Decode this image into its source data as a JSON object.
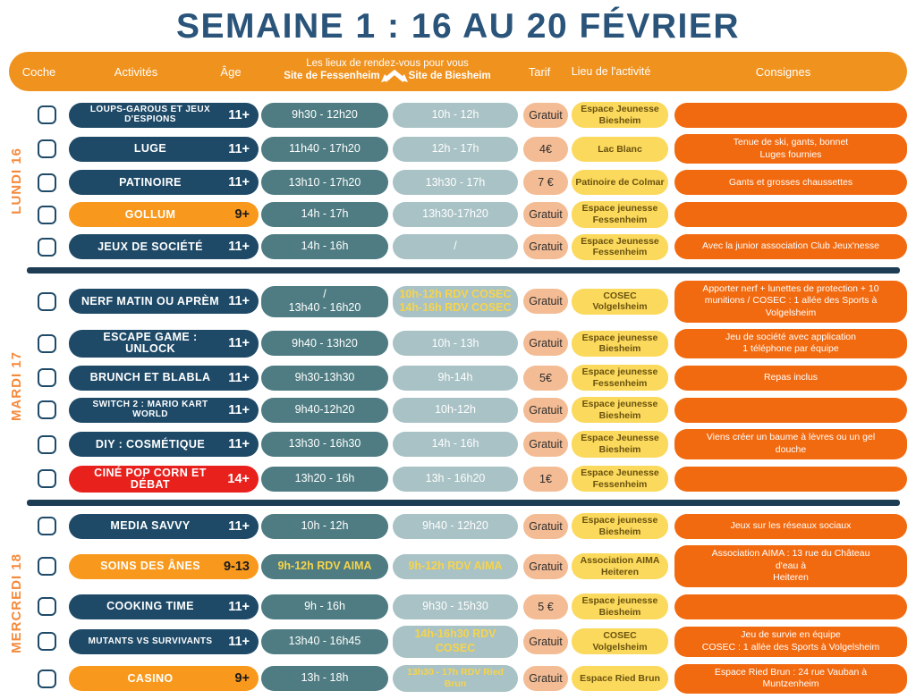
{
  "title": "SEMAINE 1 : 16 AU 20 FÉVRIER",
  "header": {
    "coche": "Coche",
    "activites": "Activités",
    "age": "Âge",
    "lieux_title": "Les lieux de rendez-vous pour vous",
    "site_left": "Site de Fessenheim",
    "site_right": "Site de Biesheim",
    "tarif": "Tarif",
    "lieu": "Lieu de l'activité",
    "consignes": "Consignes"
  },
  "colors": {
    "title_navy": "#2A547A",
    "header_orange": "#F0921E",
    "activity_navy": "#1E4A68",
    "activity_orange": "#F8991D",
    "activity_red": "#E8211D",
    "fessenheim_teal": "#4E7C82",
    "biesheim_bluegray": "#A9C2C5",
    "tarif_salmon": "#F4BC94",
    "lieu_yellow": "#FBD95C",
    "consigne_orange": "#F26A10",
    "rdv_yellow_text": "#F7D44A",
    "day_label_orange": "#F5893B",
    "separator_navy": "#1D3D55"
  },
  "days": [
    {
      "label": "LUNDI 16",
      "rows": [
        {
          "activity": "LOUPS-GAROUS ET JEUX D'ESPIONS",
          "small_name": true,
          "age": "11+",
          "pill": "navy",
          "fessenheim": "9h30 - 12h20",
          "biesheim": "10h - 12h",
          "tarif": "Gratuit",
          "lieu": "Espace Jeunesse\nBiesheim",
          "consigne": "",
          "icons": []
        },
        {
          "activity": "LUGE",
          "age": "11+",
          "pill": "navy",
          "fessenheim": "11h40 - 17h20",
          "biesheim": "12h - 17h",
          "tarif": "4€",
          "lieu": "Lac Blanc",
          "consigne": "Tenue de ski, gants, bonnet\nLuges fournies",
          "icons": [
            "sandwich"
          ]
        },
        {
          "activity": "PATINOIRE",
          "age": "11+",
          "pill": "navy",
          "fessenheim": "13h10 - 17h20",
          "biesheim": "13h30 - 17h",
          "tarif": "7 €",
          "lieu": "Patinoire de Colmar",
          "consigne": "Gants et grosses chaussettes",
          "icons": []
        },
        {
          "activity": "GOLLUM",
          "age": "9+",
          "pill": "orange",
          "fessenheim": "14h - 17h",
          "biesheim": "13h30-17h20",
          "tarif": "Gratuit",
          "lieu": "Espace jeunesse\nFessenheim",
          "consigne": "",
          "icons": []
        },
        {
          "activity": "JEUX DE SOCIÉTÉ",
          "age": "11+",
          "pill": "navy",
          "fessenheim": "14h - 16h",
          "biesheim": "/",
          "tarif": "Gratuit",
          "lieu": "Espace Jeunesse\nFessenheim",
          "consigne": "Avec la junior association Club Jeux'nesse",
          "icons": []
        }
      ]
    },
    {
      "label": "MARDI 17",
      "rows": [
        {
          "activity": "NERF MATIN OU APRÈM",
          "age": "11+",
          "pill": "navy",
          "fessenheim": "/\n13h40 - 16h20",
          "biesheim": "10h-12h RDV COSEC\n14h-16h RDV COSEC",
          "biesheim_yellow": true,
          "tarif": "Gratuit",
          "lieu": "COSEC Volgelsheim",
          "consigne": "Apporter nerf + lunettes de protection + 10\nmunitions / COSEC : 1 allée des Sports à Volgelsheim",
          "icons": []
        },
        {
          "activity": "ESCAPE GAME : UNLOCK",
          "age": "11+",
          "pill": "navy",
          "fessenheim": "9h40 - 13h20",
          "biesheim": "10h - 13h",
          "tarif": "Gratuit",
          "lieu": "Espace jeunesse\nBiesheim",
          "consigne": "Jeu de société avec application\n1 téléphone par équipe",
          "icons": [
            "sandwich"
          ]
        },
        {
          "activity": "BRUNCH ET BLABLA",
          "age": "11+",
          "pill": "navy",
          "fessenheim": "9h30-13h30",
          "biesheim": "9h-14h",
          "tarif": "5€",
          "lieu": "Espace jeunesse\nFessenheim",
          "consigne": "Repas inclus",
          "icons": []
        },
        {
          "activity": "SWITCH 2 : MARIO KART WORLD",
          "small_name": true,
          "age": "11+",
          "pill": "navy",
          "fessenheim": "9h40-12h20",
          "biesheim": "10h-12h",
          "tarif": "Gratuit",
          "lieu": "Espace jeunesse\nBiesheim",
          "consigne": "",
          "icons": []
        },
        {
          "activity": "DIY : COSMÉTIQUE",
          "age": "11+",
          "pill": "navy",
          "fessenheim": "13h30 - 16h30",
          "biesheim": "14h - 16h",
          "tarif": "Gratuit",
          "lieu": "Espace Jeunesse\nBiesheim",
          "consigne": "Viens créer un baume à lèvres ou un gel douche",
          "icons": []
        },
        {
          "activity": "CINÉ POP CORN ET DÉBAT",
          "age": "14+",
          "pill": "red",
          "fessenheim": "13h20 - 16h",
          "biesheim": "13h - 16h20",
          "tarif": "1€",
          "lieu": "Espace Jeunesse\nFessenheim",
          "consigne": "",
          "icons": []
        }
      ]
    },
    {
      "label": "MERCREDI 18",
      "rows": [
        {
          "activity": "MEDIA SAVVY",
          "age": "11+",
          "pill": "navy",
          "fessenheim": "10h - 12h",
          "biesheim": "9h40 - 12h20",
          "tarif": "Gratuit",
          "lieu": "Espace jeunesse\nBiesheim",
          "consigne": "Jeux sur les réseaux sociaux",
          "icons": []
        },
        {
          "activity": "SOINS DES ÂNES",
          "age": "9-13",
          "pill": "orange",
          "fessenheim": "9h-12h RDV AIMA",
          "fessenheim_yellow": true,
          "biesheim": "9h-12h RDV AIMA",
          "biesheim_yellow": true,
          "tarif": "Gratuit",
          "lieu": "Association AIMA\nHeiteren",
          "consigne": "Association AIMA : 13 rue du Château d'eau à\nHeiteren",
          "icons": [
            "sun",
            "cycle"
          ]
        },
        {
          "activity": "COOKING TIME",
          "age": "11+",
          "pill": "navy",
          "fessenheim": "9h - 16h",
          "biesheim": "9h30 - 15h30",
          "tarif": "5 €",
          "lieu": "Espace jeunesse\nBiesheim",
          "consigne": "",
          "icons": []
        },
        {
          "activity": "MUTANTS VS SURVIVANTS",
          "small_name": true,
          "age": "11+",
          "pill": "navy",
          "fessenheim": "13h40 - 16h45",
          "biesheim": "14h-16h30 RDV COSEC",
          "biesheim_yellow": true,
          "tarif": "Gratuit",
          "lieu": "COSEC Volgelsheim",
          "consigne": "Jeu de survie en équipe\nCOSEC : 1 allée des Sports à Volgelsheim",
          "icons": []
        },
        {
          "activity": "CASINO",
          "age": "9+",
          "pill": "orange",
          "fessenheim": "13h - 18h",
          "biesheim": "13h30 - 17h RDV Ried Brun",
          "biesheim_yellow": true,
          "biesheim_tiny": true,
          "tarif": "Gratuit",
          "lieu": "Espace Ried Brun",
          "consigne": "Espace Ried Brun : 24 rue Vauban à Muntzenheim",
          "icons": []
        }
      ]
    }
  ]
}
